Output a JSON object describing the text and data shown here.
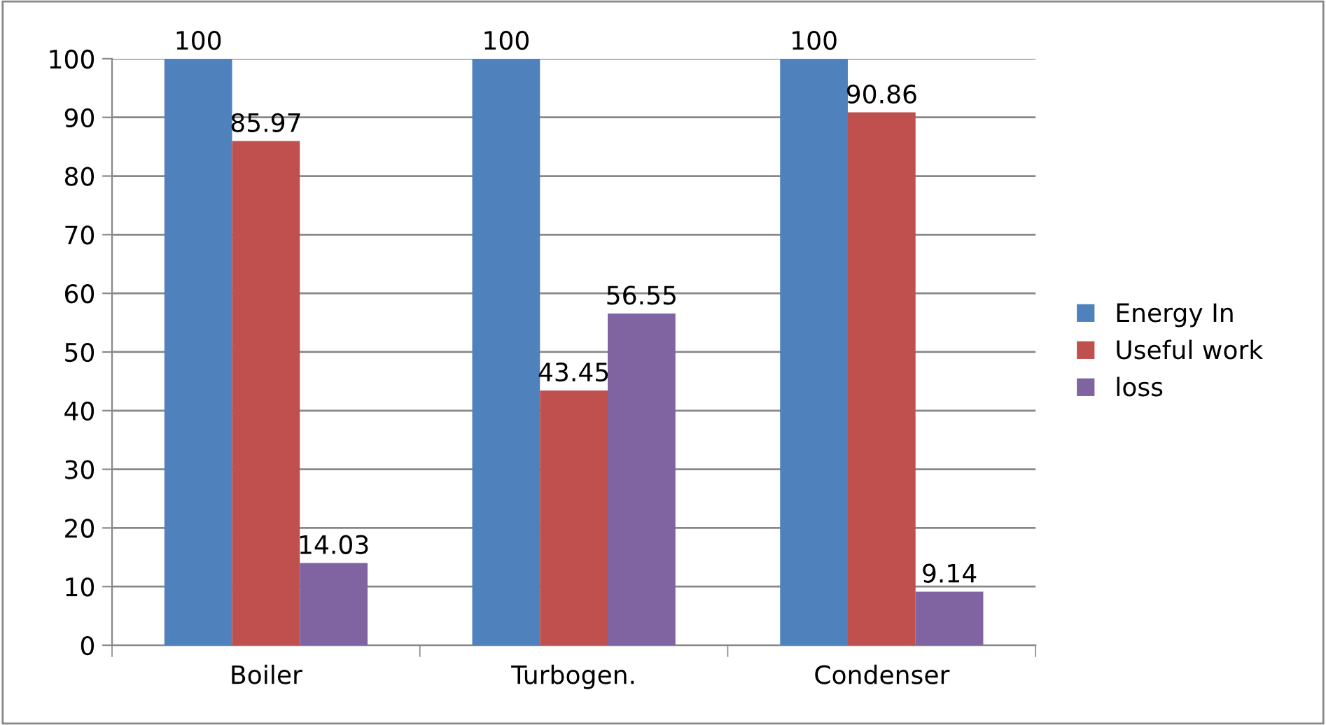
{
  "chart_data": {
    "type": "bar",
    "categories": [
      "Boiler",
      "Turbogen.",
      "Condenser"
    ],
    "series": [
      {
        "name": "Energy In",
        "color": "#4f81bd",
        "values": [
          100,
          100,
          100
        ]
      },
      {
        "name": "Useful work",
        "color": "#c0504d",
        "values": [
          85.97,
          43.45,
          90.86
        ]
      },
      {
        "name": "loss",
        "color": "#8064a2",
        "values": [
          14.03,
          56.55,
          9.14
        ]
      }
    ],
    "ylim": [
      0,
      100
    ],
    "yticks": [
      0,
      10,
      20,
      30,
      40,
      50,
      60,
      70,
      80,
      90,
      100
    ],
    "grid": "y",
    "legend": "right",
    "data_labels": true
  }
}
